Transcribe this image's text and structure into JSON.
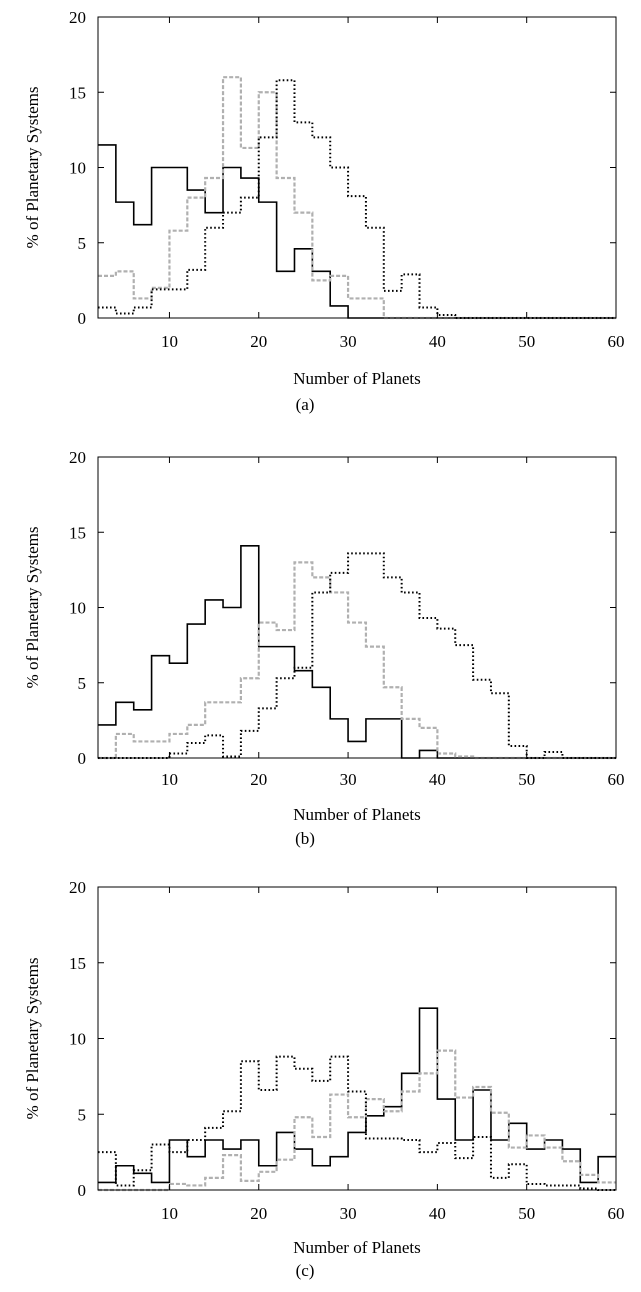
{
  "chart_data": [
    {
      "type": "line",
      "caption": "(a)",
      "xlabel": "Number of Planets",
      "ylabel": "% of Planetary Systems",
      "xlim": [
        2,
        60
      ],
      "ylim": [
        0,
        20
      ],
      "xticks": [
        10,
        20,
        30,
        40,
        50,
        60
      ],
      "yticks": [
        0,
        5,
        10,
        15,
        20
      ],
      "x_start": 2,
      "bin_width": 2,
      "series": [
        {
          "style": "solid",
          "color": "#000000",
          "values": [
            11.5,
            7.7,
            6.2,
            10.0,
            10.0,
            8.5,
            7.0,
            10.0,
            9.3,
            7.7,
            3.1,
            4.6,
            3.1,
            0.8,
            0,
            0,
            0,
            0,
            0,
            0,
            0,
            0,
            0,
            0,
            0,
            0,
            0,
            0,
            0
          ]
        },
        {
          "style": "dashed",
          "color": "#b0b0b0",
          "values": [
            2.8,
            3.1,
            1.3,
            2.0,
            5.8,
            8.0,
            9.3,
            16.0,
            11.3,
            15.0,
            9.3,
            7.0,
            2.5,
            2.8,
            1.3,
            1.3,
            0,
            0,
            0,
            0,
            0,
            0,
            0,
            0,
            0,
            0,
            0,
            0,
            0
          ]
        },
        {
          "style": "dotted",
          "color": "#000000",
          "values": [
            0.7,
            0.3,
            0.7,
            1.9,
            1.9,
            3.2,
            6.0,
            7.0,
            8.0,
            12.0,
            15.8,
            13.0,
            12.0,
            10.0,
            8.1,
            6.0,
            1.8,
            2.9,
            0.7,
            0.2,
            0,
            0,
            0,
            0,
            0,
            0,
            0,
            0,
            0
          ]
        }
      ]
    },
    {
      "type": "line",
      "caption": "(b)",
      "xlabel": "Number of Planets",
      "ylabel": "% of Planetary Systems",
      "xlim": [
        2,
        60
      ],
      "ylim": [
        0,
        20
      ],
      "xticks": [
        10,
        20,
        30,
        40,
        50,
        60
      ],
      "yticks": [
        0,
        5,
        10,
        15,
        20
      ],
      "x_start": 2,
      "bin_width": 2,
      "series": [
        {
          "style": "solid",
          "color": "#000000",
          "values": [
            2.2,
            3.7,
            3.2,
            6.8,
            6.3,
            8.9,
            10.5,
            10.0,
            14.1,
            7.4,
            7.4,
            5.8,
            4.7,
            2.6,
            1.1,
            2.6,
            2.6,
            0,
            0.5,
            0,
            0,
            0,
            0,
            0,
            0,
            0,
            0,
            0,
            0
          ]
        },
        {
          "style": "dashed",
          "color": "#b0b0b0",
          "values": [
            0,
            1.6,
            1.1,
            1.1,
            1.6,
            2.2,
            3.7,
            3.7,
            5.3,
            9.0,
            8.5,
            13.0,
            12.0,
            11.0,
            9.0,
            7.4,
            4.7,
            2.6,
            2.0,
            0.3,
            0.1,
            0,
            0,
            0,
            0,
            0,
            0,
            0,
            0
          ]
        },
        {
          "style": "dotted",
          "color": "#000000",
          "values": [
            0,
            0,
            0,
            0,
            0.3,
            1.0,
            1.5,
            0.1,
            1.8,
            3.3,
            5.3,
            6.0,
            11.0,
            12.3,
            13.6,
            13.6,
            12.0,
            11.0,
            9.3,
            8.6,
            7.5,
            5.2,
            4.3,
            0.8,
            0,
            0.4,
            0,
            0,
            0
          ]
        }
      ]
    },
    {
      "type": "line",
      "caption": "(c)",
      "xlabel": "Number of Planets",
      "ylabel": "% of Planetary Systems",
      "xlim": [
        2,
        60
      ],
      "ylim": [
        0,
        20
      ],
      "xticks": [
        10,
        20,
        30,
        40,
        50,
        60
      ],
      "yticks": [
        0,
        5,
        10,
        15,
        20
      ],
      "x_start": 2,
      "bin_width": 2,
      "series": [
        {
          "style": "solid",
          "color": "#000000",
          "values": [
            0.5,
            1.6,
            1.1,
            0.5,
            3.3,
            2.2,
            3.3,
            2.7,
            3.3,
            1.6,
            3.8,
            2.7,
            1.6,
            2.2,
            3.8,
            4.9,
            5.5,
            7.7,
            12.0,
            6.0,
            3.3,
            6.6,
            3.3,
            4.4,
            2.7,
            3.3,
            2.7,
            0.5,
            2.2
          ]
        },
        {
          "style": "dashed",
          "color": "#b0b0b0",
          "values": [
            0,
            0,
            0,
            0,
            0.4,
            0.3,
            0.8,
            2.3,
            0.6,
            1.2,
            2.0,
            4.8,
            3.5,
            6.3,
            4.8,
            6.0,
            5.2,
            6.5,
            7.7,
            9.2,
            6.1,
            6.8,
            5.1,
            2.8,
            3.6,
            2.8,
            1.9,
            1.0,
            0.5
          ]
        },
        {
          "style": "dotted",
          "color": "#000000",
          "values": [
            2.5,
            0.3,
            1.3,
            3.0,
            2.5,
            3.3,
            4.1,
            5.2,
            8.5,
            6.6,
            8.8,
            8.0,
            7.2,
            8.8,
            6.5,
            3.4,
            3.4,
            3.3,
            2.5,
            3.1,
            2.1,
            3.5,
            0.8,
            1.7,
            0.4,
            0.3,
            0.3,
            0.1,
            0
          ]
        }
      ]
    }
  ]
}
